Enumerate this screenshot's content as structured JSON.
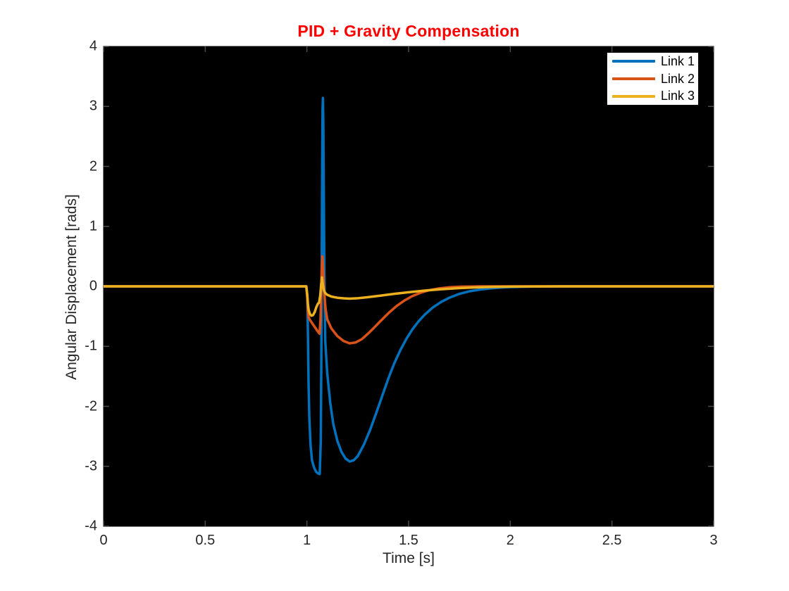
{
  "chart_data": {
    "type": "line",
    "title": "PID + Gravity Compensation",
    "title_color": "#ff0000",
    "xlabel": "Time [s]",
    "ylabel": "Angular Displacement [rads]",
    "xlim": [
      0,
      3
    ],
    "ylim": [
      -4,
      4
    ],
    "x_ticks": [
      0,
      0.5,
      1,
      1.5,
      2,
      2.5,
      3
    ],
    "x_tick_labels": [
      "0",
      "0.5",
      "1",
      "1.5",
      "2",
      "2.5",
      "3"
    ],
    "y_ticks": [
      -4,
      -3,
      -2,
      -1,
      0,
      1,
      2,
      3,
      4
    ],
    "y_tick_labels": [
      "-4",
      "-3",
      "-2",
      "-1",
      "0",
      "1",
      "2",
      "3",
      "4"
    ],
    "grid": "off",
    "plot_background": "#000000",
    "figure_background": "#ffffff",
    "tick_color": "#4a4a4a",
    "legend": {
      "position": "top-right",
      "entries": [
        {
          "label": "Link 1",
          "color": "#0072BD"
        },
        {
          "label": "Link 2",
          "color": "#D95319"
        },
        {
          "label": "Link 3",
          "color": "#EDB120"
        }
      ]
    },
    "series": [
      {
        "name": "Link 1",
        "color": "#0072BD",
        "points": [
          [
            0,
            0
          ],
          [
            0.997,
            0
          ],
          [
            1.002,
            -0.15
          ],
          [
            1.005,
            -0.8
          ],
          [
            1.008,
            -1.6
          ],
          [
            1.012,
            -2.2
          ],
          [
            1.018,
            -2.65
          ],
          [
            1.025,
            -2.9
          ],
          [
            1.035,
            -3.02
          ],
          [
            1.045,
            -3.09
          ],
          [
            1.055,
            -3.12
          ],
          [
            1.063,
            -3.13
          ],
          [
            1.068,
            -2.6
          ],
          [
            1.071,
            -1.2
          ],
          [
            1.073,
            0.5
          ],
          [
            1.075,
            2.0
          ],
          [
            1.077,
            2.95
          ],
          [
            1.079,
            3.14
          ],
          [
            1.081,
            2.6
          ],
          [
            1.083,
            1.5
          ],
          [
            1.086,
            0.2
          ],
          [
            1.09,
            -0.9
          ],
          [
            1.1,
            -1.45
          ],
          [
            1.115,
            -1.95
          ],
          [
            1.13,
            -2.3
          ],
          [
            1.15,
            -2.58
          ],
          [
            1.17,
            -2.76
          ],
          [
            1.19,
            -2.87
          ],
          [
            1.21,
            -2.92
          ],
          [
            1.23,
            -2.9
          ],
          [
            1.25,
            -2.83
          ],
          [
            1.28,
            -2.64
          ],
          [
            1.31,
            -2.4
          ],
          [
            1.34,
            -2.12
          ],
          [
            1.37,
            -1.83
          ],
          [
            1.4,
            -1.54
          ],
          [
            1.43,
            -1.28
          ],
          [
            1.46,
            -1.06
          ],
          [
            1.49,
            -0.87
          ],
          [
            1.52,
            -0.71
          ],
          [
            1.55,
            -0.58
          ],
          [
            1.58,
            -0.47
          ],
          [
            1.62,
            -0.35
          ],
          [
            1.66,
            -0.26
          ],
          [
            1.7,
            -0.19
          ],
          [
            1.75,
            -0.125
          ],
          [
            1.8,
            -0.082
          ],
          [
            1.85,
            -0.054
          ],
          [
            1.9,
            -0.035
          ],
          [
            1.95,
            -0.021
          ],
          [
            2.0,
            -0.012
          ],
          [
            2.1,
            -0.004
          ],
          [
            2.2,
            -0.001
          ],
          [
            2.35,
            0
          ],
          [
            3,
            0
          ]
        ]
      },
      {
        "name": "Link 2",
        "color": "#D95319",
        "points": [
          [
            0,
            0
          ],
          [
            0.997,
            0
          ],
          [
            1.002,
            -0.2
          ],
          [
            1.005,
            -0.42
          ],
          [
            1.009,
            -0.52
          ],
          [
            1.015,
            -0.56
          ],
          [
            1.025,
            -0.61
          ],
          [
            1.035,
            -0.66
          ],
          [
            1.045,
            -0.71
          ],
          [
            1.055,
            -0.76
          ],
          [
            1.062,
            -0.79
          ],
          [
            1.067,
            -0.55
          ],
          [
            1.07,
            -0.1
          ],
          [
            1.073,
            0.3
          ],
          [
            1.076,
            0.5
          ],
          [
            1.079,
            0.35
          ],
          [
            1.082,
            0.1
          ],
          [
            1.086,
            -0.15
          ],
          [
            1.092,
            -0.38
          ],
          [
            1.1,
            -0.55
          ],
          [
            1.12,
            -0.7
          ],
          [
            1.15,
            -0.83
          ],
          [
            1.18,
            -0.91
          ],
          [
            1.21,
            -0.95
          ],
          [
            1.24,
            -0.935
          ],
          [
            1.27,
            -0.88
          ],
          [
            1.3,
            -0.79
          ],
          [
            1.33,
            -0.69
          ],
          [
            1.36,
            -0.585
          ],
          [
            1.4,
            -0.45
          ],
          [
            1.44,
            -0.33
          ],
          [
            1.48,
            -0.235
          ],
          [
            1.52,
            -0.16
          ],
          [
            1.56,
            -0.105
          ],
          [
            1.6,
            -0.065
          ],
          [
            1.65,
            -0.033
          ],
          [
            1.7,
            -0.015
          ],
          [
            1.76,
            -0.005
          ],
          [
            1.85,
            0
          ],
          [
            3,
            0
          ]
        ]
      },
      {
        "name": "Link 3",
        "color": "#EDB120",
        "points": [
          [
            0,
            0
          ],
          [
            0.997,
            0
          ],
          [
            1.002,
            -0.15
          ],
          [
            1.005,
            -0.3
          ],
          [
            1.009,
            -0.4
          ],
          [
            1.015,
            -0.46
          ],
          [
            1.022,
            -0.49
          ],
          [
            1.03,
            -0.48
          ],
          [
            1.038,
            -0.43
          ],
          [
            1.046,
            -0.35
          ],
          [
            1.054,
            -0.29
          ],
          [
            1.06,
            -0.27
          ],
          [
            1.066,
            -0.14
          ],
          [
            1.07,
            0.03
          ],
          [
            1.074,
            0.15
          ],
          [
            1.078,
            0.03
          ],
          [
            1.083,
            -0.06
          ],
          [
            1.09,
            -0.11
          ],
          [
            1.1,
            -0.14
          ],
          [
            1.12,
            -0.17
          ],
          [
            1.15,
            -0.19
          ],
          [
            1.18,
            -0.2
          ],
          [
            1.21,
            -0.205
          ],
          [
            1.25,
            -0.198
          ],
          [
            1.3,
            -0.18
          ],
          [
            1.36,
            -0.155
          ],
          [
            1.43,
            -0.125
          ],
          [
            1.5,
            -0.098
          ],
          [
            1.58,
            -0.071
          ],
          [
            1.66,
            -0.049
          ],
          [
            1.74,
            -0.031
          ],
          [
            1.82,
            -0.019
          ],
          [
            1.9,
            -0.01
          ],
          [
            2.0,
            -0.004
          ],
          [
            2.12,
            -0.001
          ],
          [
            2.25,
            0
          ],
          [
            3,
            0
          ]
        ]
      }
    ]
  }
}
